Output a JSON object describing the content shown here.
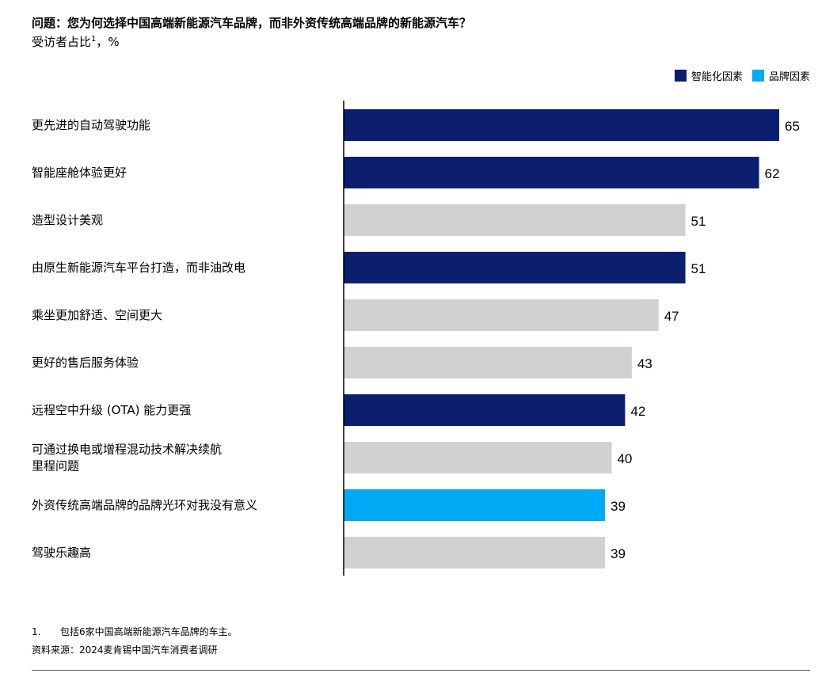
{
  "title": "问题：您为何选择中国高端新能源汽车品牌，而非外资传统高端品牌的新能源汽车？",
  "subtitle": "受访者占比",
  "subtitle_note": "1",
  "subtitle_unit": "，%",
  "legend": [
    {
      "key": "smart",
      "label": "智能化因素",
      "color": "#0b1f6e"
    },
    {
      "key": "brand",
      "label": "品牌因素",
      "color": "#00a9f4"
    }
  ],
  "colors": {
    "smart": "#0b1f6e",
    "brand": "#00a9f4",
    "other": "#d0d1d3"
  },
  "chart_data": {
    "type": "bar",
    "orientation": "horizontal",
    "title": "问题：您为何选择中国高端新能源汽车品牌，而非外资传统高端品牌的新能源汽车？",
    "ylabel": "受访者占比，%",
    "xlim": [
      0,
      65
    ],
    "grid": false,
    "legend_position": "top-right",
    "categories": [
      "更先进的自动驾驶功能",
      "智能座舱体验更好",
      "造型设计美观",
      "由原生新能源汽车平台打造，而非油改电",
      "乘坐更加舒适、空间更大",
      "更好的售后服务体验",
      "远程空中升级 (OTA) 能力更强",
      "可通过换电或增程混动技术解决续航里程问题",
      "外资传统高端品牌的品牌光环对我没有意义",
      "驾驶乐趣高"
    ],
    "label_lines": [
      [
        "更先进的自动驾驶功能"
      ],
      [
        "智能座舱体验更好"
      ],
      [
        "造型设计美观"
      ],
      [
        "由原生新能源汽车平台打造，而非油改电"
      ],
      [
        "乘坐更加舒适、空间更大"
      ],
      [
        "更好的售后服务体验"
      ],
      [
        "远程空中升级 (OTA) 能力更强"
      ],
      [
        "可通过换电或增程混动技术解决续航",
        "里程问题"
      ],
      [
        "外资传统高端品牌的品牌光环对我没有意义"
      ],
      [
        "驾驶乐趣高"
      ]
    ],
    "values": [
      65,
      62,
      51,
      51,
      47,
      43,
      42,
      40,
      39,
      39
    ],
    "groups": [
      "smart",
      "smart",
      "other",
      "smart",
      "other",
      "other",
      "smart",
      "other",
      "brand",
      "other"
    ]
  },
  "footnote": {
    "number": "1.",
    "text": "包括6家中国高端新能源汽车品牌的车主。"
  },
  "source": "资料来源：2024麦肯锡中国汽车消费者调研"
}
